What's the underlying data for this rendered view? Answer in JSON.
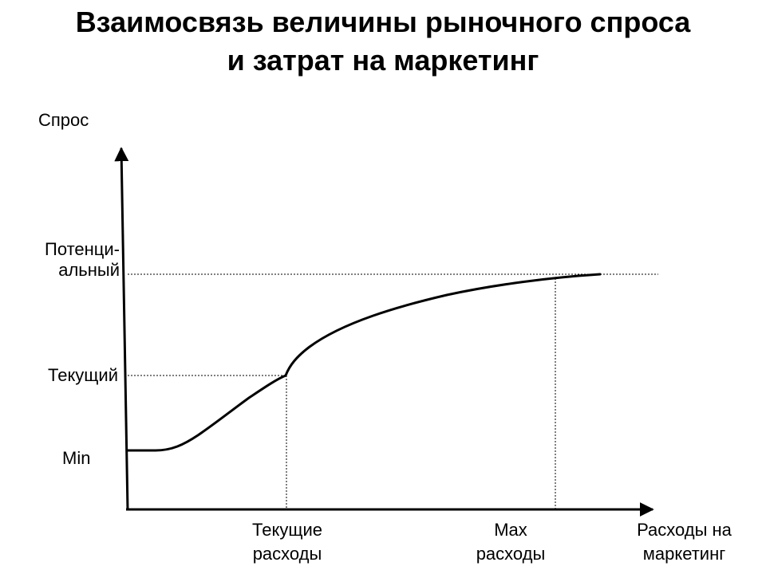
{
  "title": {
    "line1": "Взаимосвязь величины рыночного спроса",
    "line2": "и затрат на маркетинг"
  },
  "y_axis": {
    "label": "Спрос",
    "levels": [
      {
        "id": "potential",
        "line1": "Потенци-",
        "line2": "альный"
      },
      {
        "id": "current",
        "line1": "Текущий"
      },
      {
        "id": "min",
        "line1": "Min"
      }
    ]
  },
  "x_axis": {
    "label_line1": "Расходы на",
    "label_line2": "маркетинг",
    "marks": [
      {
        "id": "current-spend",
        "line1": "Текущие",
        "line2": "расходы"
      },
      {
        "id": "max-spend",
        "line1": "Max",
        "line2": "расходы"
      }
    ]
  },
  "colors": {
    "line": "#000000",
    "background": "#ffffff"
  }
}
